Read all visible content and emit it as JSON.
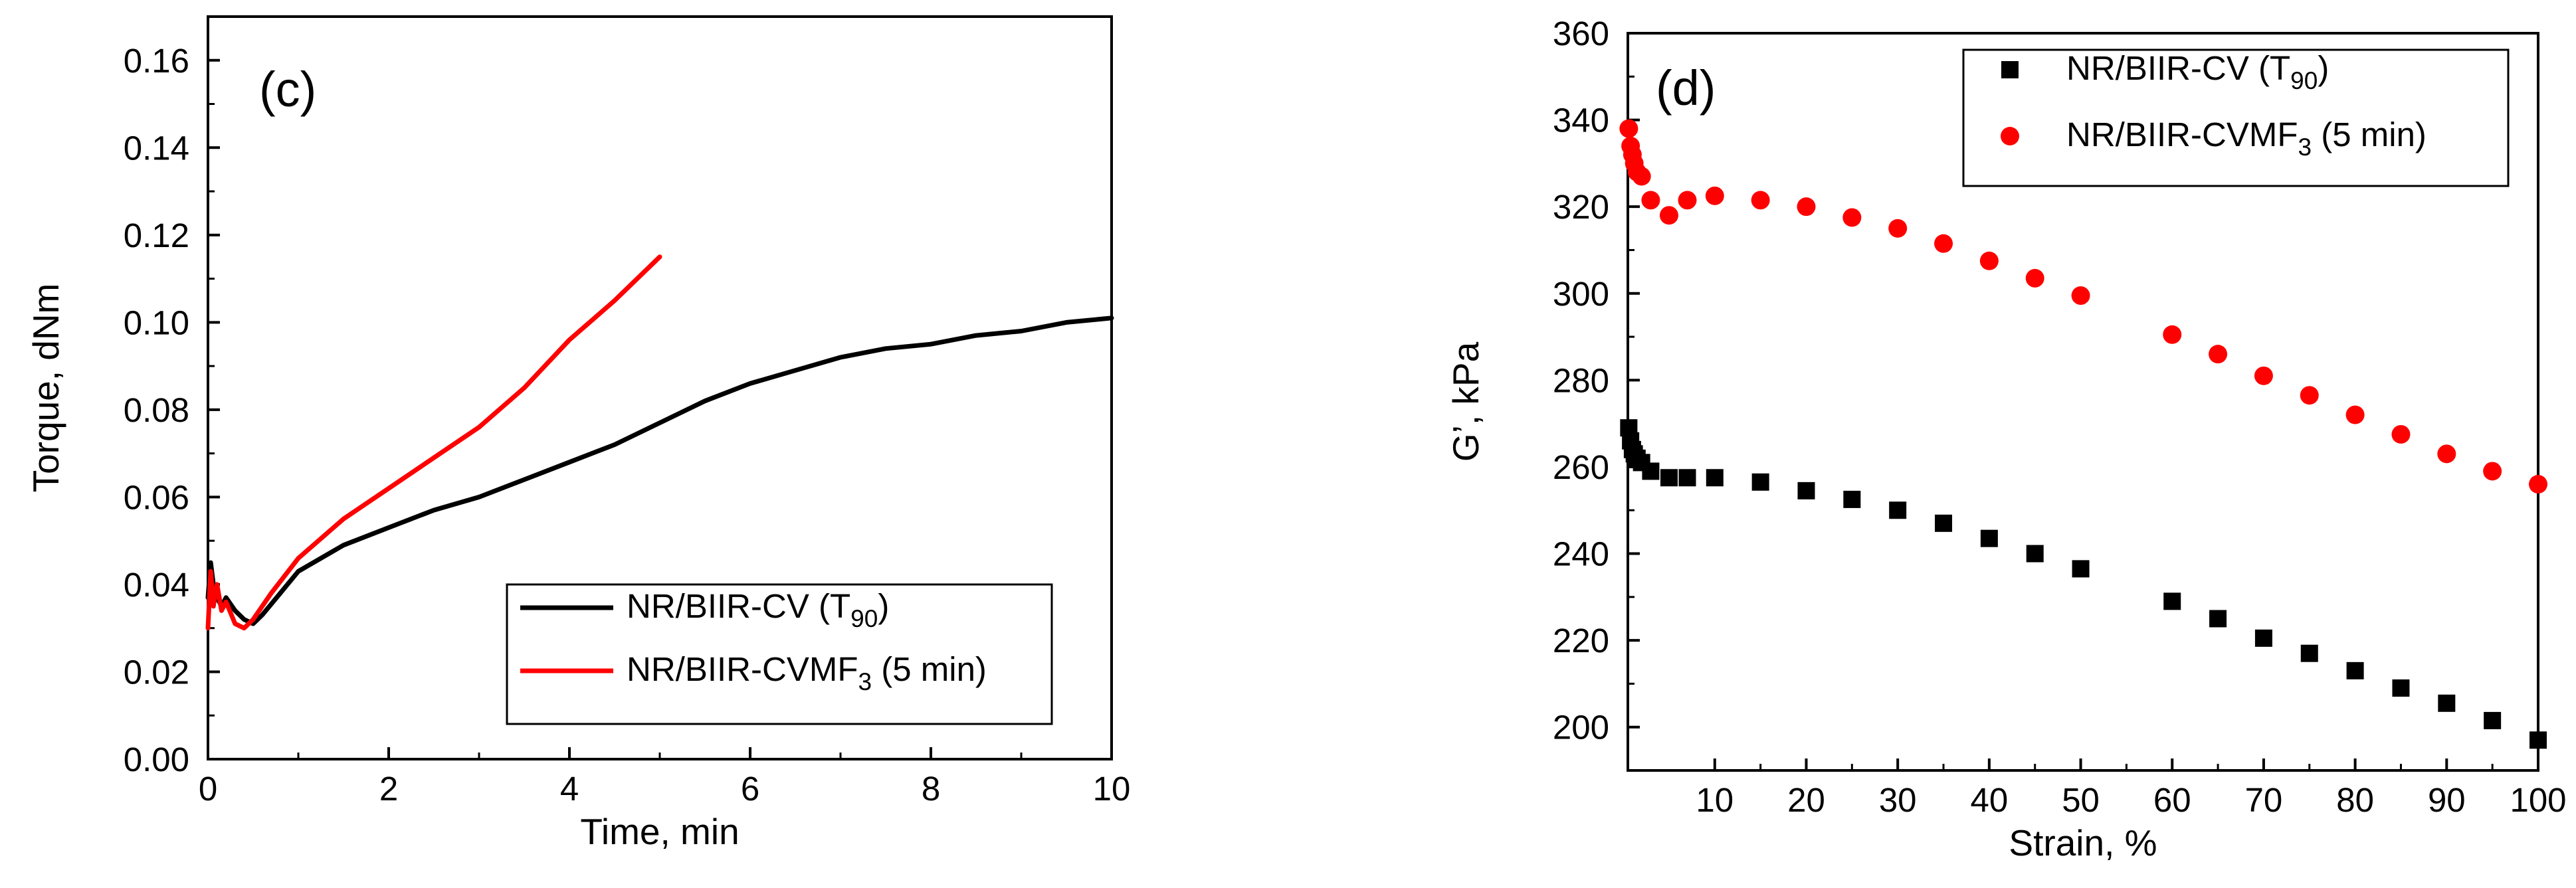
{
  "colors": {
    "black_series": "#000000",
    "red_series": "#ff0000",
    "axis": "#000000",
    "background": "#ffffff"
  },
  "chart_data": [
    {
      "type": "line",
      "panel_label": "(c)",
      "xlabel": "Time, min",
      "ylabel": "Torque, dNm",
      "xlim": [
        0,
        10
      ],
      "ylim": [
        0,
        0.17
      ],
      "xticks": [
        0,
        2,
        4,
        6,
        8,
        10
      ],
      "xtick_labels": [
        "0",
        "2",
        "4",
        "6",
        "8",
        "10"
      ],
      "yticks": [
        0,
        0.02,
        0.04,
        0.06,
        0.08,
        0.1,
        0.12,
        0.14,
        0.16
      ],
      "ytick_labels": [
        "0.00",
        "0.02",
        "0.04",
        "0.06",
        "0.08",
        "0.10",
        "0.12",
        "0.14",
        "0.16"
      ],
      "legend_position": "bottom-right",
      "series": [
        {
          "name": "NR/BIIR-CV (T90)",
          "legend": {
            "main": "NR/BIIR-CV (T",
            "sub": "90",
            "tail": ")"
          },
          "color": "#000000",
          "x": [
            0.0,
            0.03,
            0.06,
            0.1,
            0.15,
            0.2,
            0.3,
            0.4,
            0.5,
            0.6,
            0.8,
            1.0,
            1.5,
            2.0,
            2.5,
            3.0,
            3.5,
            4.0,
            4.5,
            5.0,
            5.5,
            6.0,
            6.5,
            7.0,
            7.5,
            8.0,
            8.5,
            9.0,
            9.5,
            10.0
          ],
          "y": [
            0.037,
            0.045,
            0.04,
            0.037,
            0.035,
            0.037,
            0.034,
            0.032,
            0.031,
            0.033,
            0.038,
            0.043,
            0.049,
            0.053,
            0.057,
            0.06,
            0.064,
            0.068,
            0.072,
            0.077,
            0.082,
            0.086,
            0.089,
            0.092,
            0.094,
            0.095,
            0.097,
            0.098,
            0.1,
            0.101
          ]
        },
        {
          "name": "NR/BIIR-CVMF3 (5 min)",
          "legend": {
            "main": "NR/BIIR-CVMF",
            "sub": "3",
            "tail": " (5 min)"
          },
          "color": "#ff0000",
          "x": [
            0.0,
            0.03,
            0.06,
            0.1,
            0.15,
            0.2,
            0.3,
            0.4,
            0.5,
            0.7,
            1.0,
            1.5,
            2.0,
            2.5,
            3.0,
            3.5,
            4.0,
            4.5,
            5.0
          ],
          "y": [
            0.03,
            0.043,
            0.035,
            0.04,
            0.034,
            0.036,
            0.031,
            0.03,
            0.032,
            0.038,
            0.046,
            0.055,
            0.062,
            0.069,
            0.076,
            0.085,
            0.096,
            0.105,
            0.115
          ]
        }
      ]
    },
    {
      "type": "scatter",
      "panel_label": "(d)",
      "xlabel": "Strain, %",
      "ylabel": "G’, kPa",
      "xlim": [
        0.5,
        100
      ],
      "ylim": [
        190,
        360
      ],
      "xticks": [
        10,
        20,
        30,
        40,
        50,
        60,
        70,
        80,
        90,
        100
      ],
      "xtick_labels": [
        "10",
        "20",
        "30",
        "40",
        "50",
        "60",
        "70",
        "80",
        "90",
        "100"
      ],
      "yticks": [
        200,
        220,
        240,
        260,
        280,
        300,
        320,
        340,
        360
      ],
      "ytick_labels": [
        "200",
        "220",
        "240",
        "260",
        "280",
        "300",
        "320",
        "340",
        "360"
      ],
      "legend_position": "top-right",
      "series": [
        {
          "name": "NR/BIIR-CV (T90)",
          "legend": {
            "main": "NR/BIIR-CV (T",
            "sub": "90",
            "tail": ")"
          },
          "marker": "square",
          "color": "#000000",
          "x": [
            0.6,
            0.8,
            1.0,
            1.2,
            1.5,
            2.0,
            3.0,
            5.0,
            7.0,
            10,
            15,
            20,
            25,
            30,
            35,
            40,
            45,
            50,
            60,
            65,
            70,
            75,
            80,
            85,
            90,
            95,
            100
          ],
          "y": [
            269,
            266,
            264,
            263,
            262,
            261,
            259,
            257.5,
            257.5,
            257.5,
            256.5,
            254.5,
            252.5,
            250,
            247,
            243.5,
            240,
            236.5,
            229,
            225,
            220.5,
            217,
            213,
            209,
            205.5,
            201.5,
            197
          ]
        },
        {
          "name": "NR/BIIR-CVMF3 (5 min)",
          "legend": {
            "main": "NR/BIIR-CVMF",
            "sub": "3",
            "tail": " (5 min)"
          },
          "marker": "circle",
          "color": "#ff0000",
          "x": [
            0.6,
            0.8,
            1.0,
            1.2,
            1.5,
            2.0,
            3.0,
            5.0,
            7.0,
            10,
            15,
            20,
            25,
            30,
            35,
            40,
            45,
            50,
            60,
            65,
            70,
            75,
            80,
            85,
            90,
            95,
            100
          ],
          "y": [
            338,
            334,
            332,
            330,
            328,
            327,
            321.5,
            318,
            321.5,
            322.5,
            321.5,
            320,
            317.5,
            315,
            311.5,
            307.5,
            303.5,
            299.5,
            290.5,
            286,
            281,
            276.5,
            272,
            267.5,
            263,
            259,
            256
          ]
        }
      ]
    }
  ]
}
